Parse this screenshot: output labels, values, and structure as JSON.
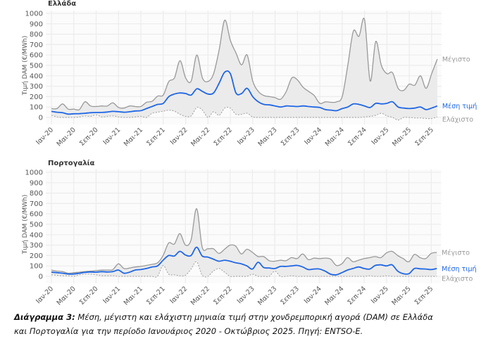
{
  "chart_data": [
    {
      "type": "line",
      "title": "Ελλάδα",
      "ylabel": "Τιμή DAM (€/MWh)",
      "ylim": [
        0,
        1000
      ],
      "yticks": [
        "0",
        "100",
        "200",
        "300",
        "400",
        "500",
        "600",
        "700",
        "800",
        "900",
        "1000"
      ],
      "xticks": [
        "Ιαν-20",
        "Μαι-20",
        "Σεπ-20",
        "Ιαν-21",
        "Μαι-21",
        "Σεπ-21",
        "Ιαν-22",
        "Μαι-22",
        "Σεπ-22",
        "Ιαν-23",
        "Μαι-23",
        "Σεπ-23",
        "Ιαν-24",
        "Μαι-24",
        "Σεπ-24",
        "Ιαν-25",
        "Μαι-25",
        "Σεπ-25"
      ],
      "x_start": "2020-01",
      "x_end": "2025-10",
      "grid": true,
      "series": [
        {
          "name": "Μέγιστο",
          "color": "#999999",
          "values": [
            85,
            85,
            130,
            80,
            80,
            75,
            150,
            110,
            105,
            110,
            110,
            140,
            95,
            90,
            110,
            105,
            105,
            145,
            155,
            205,
            215,
            345,
            380,
            545,
            380,
            350,
            600,
            380,
            345,
            420,
            650,
            935,
            740,
            620,
            505,
            600,
            350,
            250,
            210,
            200,
            190,
            175,
            250,
            380,
            360,
            290,
            250,
            210,
            135,
            150,
            145,
            150,
            200,
            500,
            830,
            780,
            940,
            350,
            730,
            500,
            420,
            430,
            280,
            260,
            320,
            310,
            400,
            280,
            420,
            560
          ]
        },
        {
          "name": "Μέση τιμή",
          "color": "#1f66e5",
          "values": [
            58,
            50,
            45,
            32,
            35,
            36,
            40,
            45,
            47,
            48,
            52,
            58,
            55,
            50,
            55,
            62,
            65,
            85,
            105,
            125,
            135,
            200,
            225,
            235,
            230,
            215,
            275,
            250,
            225,
            235,
            330,
            435,
            420,
            235,
            230,
            280,
            200,
            150,
            125,
            120,
            110,
            100,
            110,
            108,
            105,
            110,
            105,
            100,
            95,
            75,
            70,
            65,
            85,
            100,
            130,
            125,
            110,
            95,
            135,
            130,
            135,
            150,
            100,
            90,
            85,
            90,
            100,
            75,
            90,
            110
          ]
        },
        {
          "name": "Ελάχιστο",
          "color": "#aaaaaa",
          "values": [
            20,
            5,
            0,
            0,
            0,
            5,
            15,
            10,
            25,
            5,
            10,
            15,
            5,
            0,
            0,
            5,
            10,
            0,
            40,
            50,
            60,
            70,
            60,
            30,
            10,
            15,
            95,
            70,
            0,
            55,
            20,
            90,
            90,
            30,
            30,
            40,
            5,
            0,
            0,
            0,
            0,
            0,
            0,
            0,
            0,
            0,
            0,
            0,
            0,
            0,
            0,
            0,
            0,
            0,
            0,
            0,
            5,
            10,
            20,
            40,
            15,
            0,
            -25,
            0,
            0,
            -5,
            -5,
            -10,
            -10,
            5
          ]
        }
      ]
    },
    {
      "type": "line",
      "title": "Πορτογαλία",
      "ylabel": "Τιμή DAM (€/MWh)",
      "ylim": [
        0,
        1000
      ],
      "yticks": [
        "0",
        "100",
        "200",
        "300",
        "400",
        "500",
        "600",
        "700",
        "800",
        "900",
        "1000"
      ],
      "xticks": [
        "Ιαν-20",
        "Μαι-20",
        "Σεπ-20",
        "Ιαν-21",
        "Μαι-21",
        "Σεπ-21",
        "Ιαν-22",
        "Μαι-22",
        "Σεπ-22",
        "Ιαν-23",
        "Μαι-23",
        "Σεπ-23",
        "Ιαν-24",
        "Μαι-24",
        "Σεπ-24",
        "Ιαν-25",
        "Μαι-25",
        "Σεπ-25"
      ],
      "x_start": "2020-01",
      "x_end": "2025-10",
      "grid": true,
      "series": [
        {
          "name": "Μέγιστο",
          "color": "#999999",
          "values": [
            60,
            50,
            45,
            30,
            35,
            40,
            45,
            50,
            55,
            60,
            60,
            65,
            120,
            75,
            80,
            90,
            95,
            105,
            115,
            130,
            200,
            320,
            310,
            410,
            300,
            350,
            650,
            280,
            265,
            265,
            220,
            260,
            300,
            290,
            215,
            260,
            230,
            190,
            190,
            150,
            145,
            155,
            150,
            180,
            170,
            215,
            160,
            175,
            170,
            175,
            165,
            105,
            120,
            180,
            140,
            155,
            170,
            180,
            190,
            180,
            225,
            240,
            200,
            170,
            140,
            210,
            180,
            170,
            220,
            230
          ]
        },
        {
          "name": "Μέση τιμή",
          "color": "#1f66e5",
          "values": [
            40,
            35,
            30,
            22,
            22,
            30,
            38,
            42,
            40,
            45,
            42,
            45,
            60,
            30,
            40,
            60,
            65,
            75,
            90,
            100,
            155,
            200,
            195,
            240,
            205,
            200,
            280,
            195,
            185,
            165,
            145,
            155,
            145,
            130,
            120,
            100,
            70,
            135,
            85,
            80,
            75,
            95,
            95,
            100,
            105,
            90,
            65,
            70,
            70,
            50,
            20,
            15,
            35,
            60,
            75,
            90,
            75,
            70,
            105,
            110,
            100,
            110,
            50,
            25,
            25,
            75,
            72,
            70,
            65,
            75
          ]
        },
        {
          "name": "Ελάχιστο",
          "color": "#aaaaaa",
          "values": [
            15,
            10,
            5,
            5,
            0,
            15,
            20,
            20,
            15,
            5,
            5,
            5,
            0,
            0,
            0,
            0,
            0,
            0,
            0,
            0,
            105,
            20,
            15,
            5,
            10,
            70,
            140,
            10,
            0,
            50,
            75,
            40,
            0,
            0,
            0,
            0,
            20,
            0,
            0,
            0,
            50,
            0,
            0,
            5,
            0,
            0,
            0,
            0,
            0,
            0,
            0,
            0,
            0,
            0,
            0,
            0,
            0,
            5,
            0,
            0,
            5,
            0,
            0,
            0,
            0,
            0,
            0,
            0,
            0,
            0
          ]
        }
      ]
    }
  ],
  "caption": {
    "label": "Διάγραμμα 3:",
    "line1": " Μέση, μέγιστη και ελάχιστη μηνιαία τιμή στην χονδρεμπορική αγορά (DAM) σε Ελλάδα",
    "line2": "και Πορτογαλία για την περίοδο Ιανουάριος 2020 - Οκτώβριος 2025. Πηγή: ENTSO-E."
  }
}
